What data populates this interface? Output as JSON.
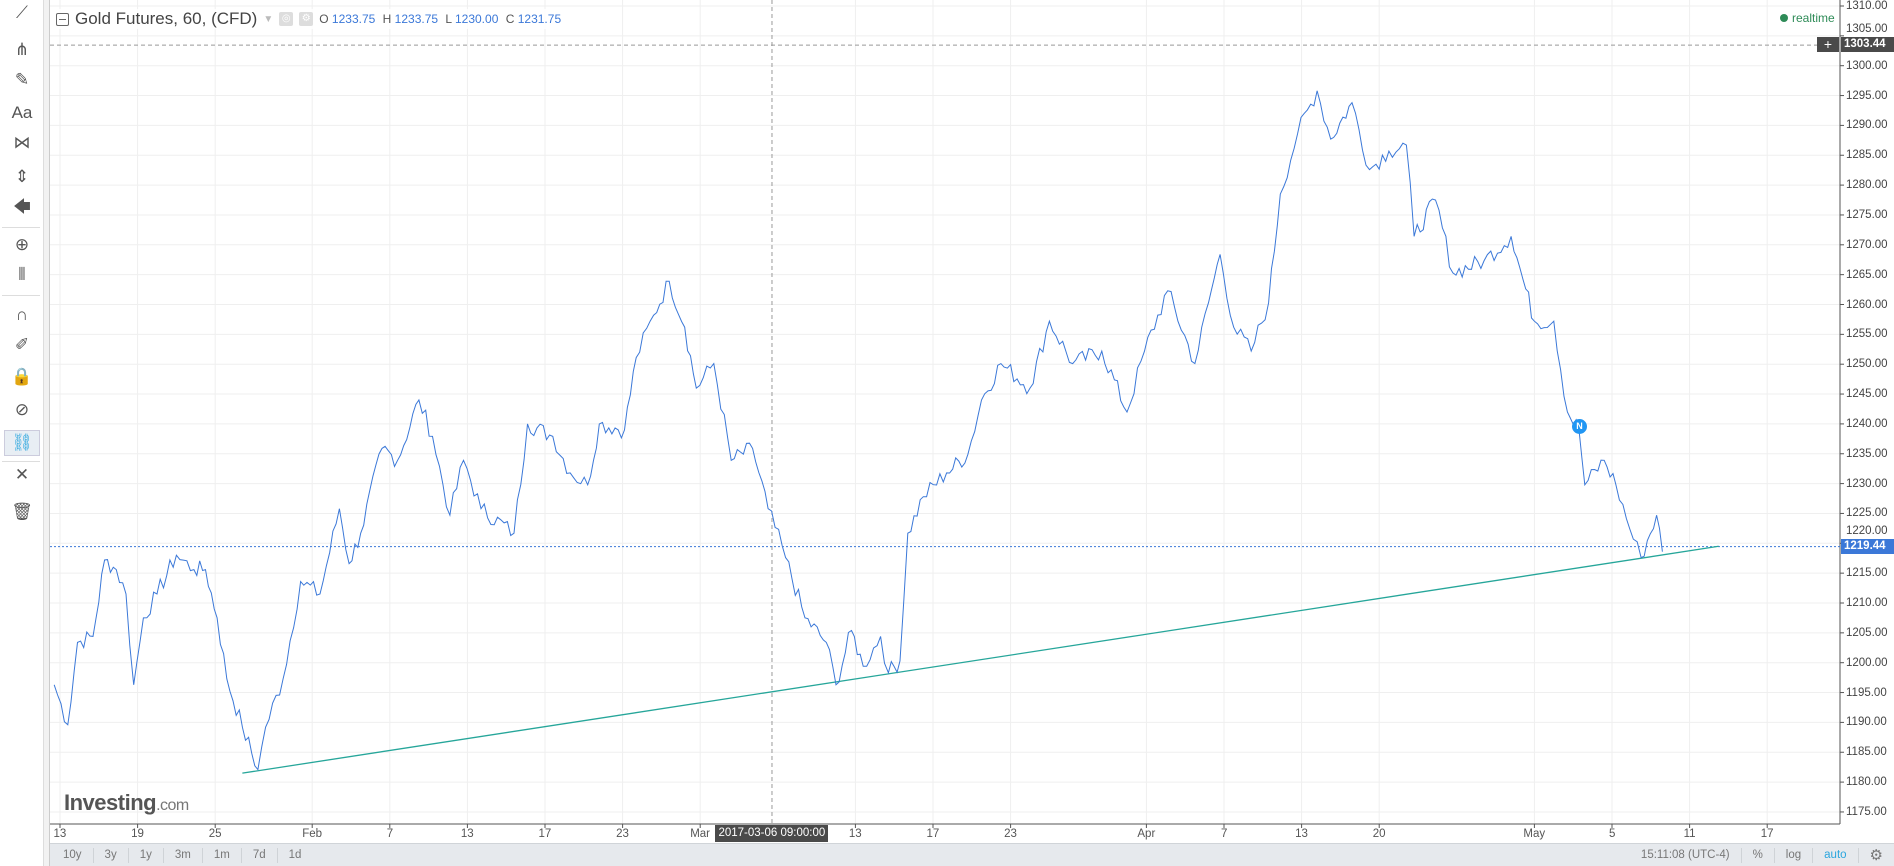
{
  "toolbar": {
    "items": [
      "trend-line",
      "pitchfork",
      "brush",
      "text",
      "pattern",
      "measure",
      "arrow",
      "zoom-in",
      "price-range",
      "magnet",
      "stay-in-drawing",
      "lock",
      "hide",
      "sync-link",
      "remove-tools",
      "trash"
    ],
    "text_tool_label": "Aa"
  },
  "legend": {
    "title": "Gold Futures, 60, (CFD)",
    "o_label": "O",
    "o": "1233.75",
    "h_label": "H",
    "h": "1233.75",
    "l_label": "L",
    "l": "1230.00",
    "c_label": "C",
    "c": "1231.75"
  },
  "realtime": "realtime",
  "logo": {
    "main": "Investing",
    "suffix": ".com"
  },
  "crosshair": {
    "price": "1303.44",
    "time": "2017-03-06 09:00:00",
    "plus": "+"
  },
  "last_price": "1219.44",
  "news_marker": "N",
  "bottom": {
    "ranges": [
      "10y",
      "3y",
      "1y",
      "3m",
      "1m",
      "7d",
      "1d"
    ],
    "clock": "15:11:08 (UTC-4)",
    "percent": "%",
    "log": "log",
    "auto": "auto"
  },
  "colors": {
    "line": "#3b78d8",
    "trend": "#26a69a",
    "grid": "#efefef",
    "active": "#2ba6de",
    "realtime": "#2e8b57"
  },
  "chart_data": {
    "type": "line",
    "title": "Gold Futures, 60, (CFD)",
    "x_unit": "trading days since Jan 13",
    "ylim": [
      1170,
      1312
    ],
    "y_ticks": [
      1175,
      1180,
      1185,
      1190,
      1195,
      1200,
      1205,
      1210,
      1215,
      1220,
      1225,
      1230,
      1235,
      1240,
      1245,
      1250,
      1255,
      1260,
      1265,
      1270,
      1275,
      1280,
      1285,
      1290,
      1295,
      1300,
      1305,
      1310
    ],
    "x_ticks": [
      {
        "label": "13",
        "d": 0
      },
      {
        "label": "19",
        "d": 4
      },
      {
        "label": "25",
        "d": 8
      },
      {
        "label": "Feb",
        "d": 13
      },
      {
        "label": "7",
        "d": 17
      },
      {
        "label": "13",
        "d": 21
      },
      {
        "label": "17",
        "d": 25
      },
      {
        "label": "23",
        "d": 29
      },
      {
        "label": "Mar",
        "d": 33
      },
      {
        "label": "13",
        "d": 41
      },
      {
        "label": "17",
        "d": 45
      },
      {
        "label": "23",
        "d": 49
      },
      {
        "label": "Apr",
        "d": 56
      },
      {
        "label": "7",
        "d": 60
      },
      {
        "label": "13",
        "d": 64
      },
      {
        "label": "20",
        "d": 68
      },
      {
        "label": "May",
        "d": 76
      },
      {
        "label": "5",
        "d": 80
      },
      {
        "label": "11",
        "d": 84
      },
      {
        "label": "17",
        "d": 88
      }
    ],
    "series": [
      {
        "name": "Gold Futures",
        "points": [
          [
            -0.3,
            1196.3
          ],
          [
            0.4,
            1189.6
          ],
          [
            0.9,
            1203.4
          ],
          [
            1.7,
            1204.4
          ],
          [
            2.3,
            1217.2
          ],
          [
            2.9,
            1215.6
          ],
          [
            3.4,
            1211.5
          ],
          [
            3.8,
            1196.3
          ],
          [
            4.3,
            1207.5
          ],
          [
            5.0,
            1211.5
          ],
          [
            6.0,
            1218
          ],
          [
            6.9,
            1215.6
          ],
          [
            7.5,
            1215.6
          ],
          [
            8.1,
            1207.5
          ],
          [
            8.6,
            1197.3
          ],
          [
            9.4,
            1189.2
          ],
          [
            10.2,
            1182.1
          ],
          [
            10.6,
            1189.2
          ],
          [
            11.5,
            1197.3
          ],
          [
            12.4,
            1213.6
          ],
          [
            13.4,
            1211.5
          ],
          [
            14.4,
            1225.8
          ],
          [
            14.9,
            1216.6
          ],
          [
            15.5,
            1221.7
          ],
          [
            16.6,
            1235.9
          ],
          [
            17.4,
            1233.9
          ],
          [
            18.5,
            1244
          ],
          [
            19.2,
            1237.9
          ],
          [
            20.1,
            1224.7
          ],
          [
            20.8,
            1233.9
          ],
          [
            21.7,
            1225.8
          ],
          [
            23.4,
            1221.7
          ],
          [
            24.1,
            1240
          ],
          [
            25.4,
            1237.9
          ],
          [
            26.3,
            1231.8
          ],
          [
            27.2,
            1229.8
          ],
          [
            27.8,
            1240
          ],
          [
            29.1,
            1239
          ],
          [
            29.7,
            1251.1
          ],
          [
            30.6,
            1258.2
          ],
          [
            31.4,
            1263.9
          ],
          [
            32.2,
            1256.2
          ],
          [
            32.8,
            1246
          ],
          [
            33.7,
            1250.1
          ],
          [
            34.6,
            1233.9
          ],
          [
            35.7,
            1235.9
          ],
          [
            36.5,
            1225.8
          ],
          [
            37.4,
            1217.6
          ],
          [
            38.4,
            1207.5
          ],
          [
            39.5,
            1203.4
          ],
          [
            40,
            1196.3
          ],
          [
            40.8,
            1205.4
          ],
          [
            41.4,
            1199.4
          ],
          [
            42.3,
            1204.4
          ],
          [
            42.7,
            1198.3
          ],
          [
            43.3,
            1200.3
          ],
          [
            43.7,
            1221.7
          ],
          [
            44.5,
            1227.8
          ],
          [
            45.7,
            1231.8
          ],
          [
            46.8,
            1234.9
          ],
          [
            47.5,
            1244
          ],
          [
            48.5,
            1250.1
          ],
          [
            50,
            1246
          ],
          [
            51,
            1257.2
          ],
          [
            52.2,
            1250.1
          ],
          [
            53.7,
            1252.2
          ],
          [
            55,
            1242
          ],
          [
            55.9,
            1252.2
          ],
          [
            57.1,
            1262.3
          ],
          [
            58.5,
            1250.1
          ],
          [
            59.2,
            1260.3
          ],
          [
            59.8,
            1268.4
          ],
          [
            60.5,
            1256.2
          ],
          [
            61.4,
            1252.2
          ],
          [
            62.3,
            1260.3
          ],
          [
            62.9,
            1278.5
          ],
          [
            63.8,
            1288.7
          ],
          [
            64.8,
            1295.8
          ],
          [
            65.5,
            1287.7
          ],
          [
            66.6,
            1293.8
          ],
          [
            67.5,
            1282.6
          ],
          [
            68.5,
            1285.7
          ],
          [
            69.4,
            1286.7
          ],
          [
            69.8,
            1271.4
          ],
          [
            70.9,
            1277.5
          ],
          [
            71.8,
            1265.3
          ],
          [
            73.4,
            1267.3
          ],
          [
            74.8,
            1271.4
          ],
          [
            75.4,
            1264.3
          ],
          [
            76,
            1257.2
          ],
          [
            77,
            1257.2
          ],
          [
            77.7,
            1242
          ],
          [
            78.3,
            1239
          ],
          [
            78.6,
            1229.8
          ],
          [
            79.6,
            1233.9
          ],
          [
            80.2,
            1229.8
          ],
          [
            81.1,
            1220.7
          ],
          [
            81.5,
            1217.6
          ],
          [
            82.3,
            1224.7
          ],
          [
            82.6,
            1218.6
          ]
        ]
      }
    ],
    "trendline": [
      [
        9.4,
        1181.5
      ],
      [
        85.5,
        1219.5
      ]
    ],
    "last_price": 1219.44,
    "crosshair": {
      "d": 36.7,
      "price": 1303.44
    },
    "news_marker": {
      "d": 78.3,
      "price": 1239.7
    }
  }
}
